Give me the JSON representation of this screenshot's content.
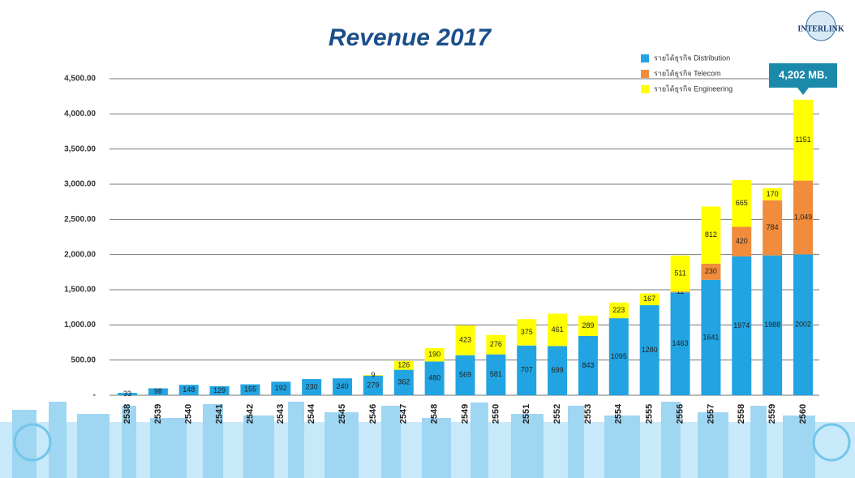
{
  "chart_data": {
    "type": "stacked_bar",
    "title": "Revenue 2017",
    "logo": "INTERLINK",
    "annotation": "4,202 MB.",
    "categories": [
      "2538",
      "2539",
      "2540",
      "2541",
      "2542",
      "2543",
      "2544",
      "2545",
      "2546",
      "2547",
      "2548",
      "2549",
      "2550",
      "2551",
      "2552",
      "2553",
      "2554",
      "2555",
      "2556",
      "2557",
      "2558",
      "2559",
      "2560"
    ],
    "series": [
      {
        "name": "รายได้ธุรกิจ Distribution",
        "color": "#22a4e2",
        "values": [
          33,
          98,
          148,
          129,
          155,
          192,
          230,
          240,
          279,
          362,
          480,
          569,
          581,
          707,
          699,
          843,
          1095,
          1280,
          1463,
          1641,
          1974,
          1988,
          2002
        ]
      },
      {
        "name": "รายได้ธุรกิจ Telecom",
        "color": "#f08c3c",
        "values": [
          null,
          null,
          null,
          null,
          null,
          null,
          null,
          null,
          null,
          null,
          null,
          null,
          null,
          null,
          null,
          null,
          null,
          null,
          11,
          230,
          420,
          784,
          1049
        ],
        "value_labels": [
          null,
          null,
          null,
          null,
          null,
          null,
          null,
          null,
          null,
          null,
          null,
          null,
          null,
          null,
          null,
          null,
          null,
          null,
          "11",
          "230",
          "420",
          "784",
          "1,049"
        ]
      },
      {
        "name": "รายได้ธุรกิจ Engineering",
        "color": "#ffff00",
        "values": [
          null,
          null,
          null,
          null,
          null,
          null,
          null,
          null,
          9,
          126,
          190,
          423,
          276,
          375,
          461,
          289,
          223,
          167,
          511,
          812,
          665,
          170,
          1151
        ]
      }
    ],
    "ylim": [
      0,
      4500
    ],
    "yticks": [
      {
        "value": 0,
        "label": "-"
      },
      {
        "value": 500,
        "label": "500.00"
      },
      {
        "value": 1000,
        "label": "1,000.00"
      },
      {
        "value": 1500,
        "label": "1,500.00"
      },
      {
        "value": 2000,
        "label": "2,000.00"
      },
      {
        "value": 2500,
        "label": "2,500.00"
      },
      {
        "value": 3000,
        "label": "3,000.00"
      },
      {
        "value": 3500,
        "label": "3,500.00"
      },
      {
        "value": 4000,
        "label": "4,000.00"
      },
      {
        "value": 4500,
        "label": "4,500.00"
      }
    ],
    "grid": true,
    "legend": "top-right"
  }
}
